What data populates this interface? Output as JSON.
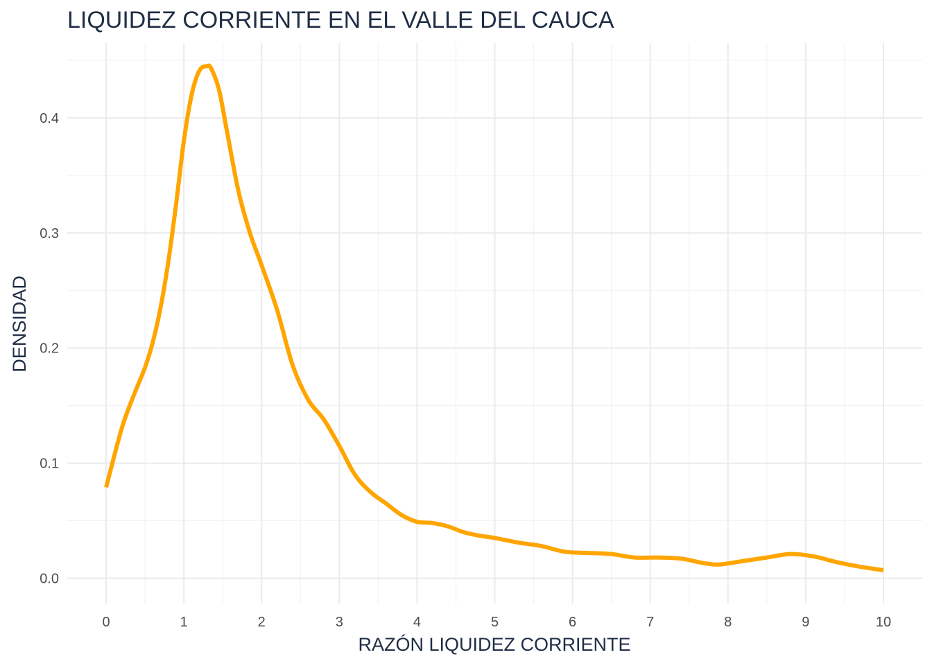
{
  "chart_data": {
    "type": "line",
    "title": "LIQUIDEZ CORRIENTE EN EL VALLE DEL CAUCA",
    "xlabel": "RAZÓN LIQUIDEZ CORRIENTE",
    "ylabel": "DENSIDAD",
    "xlim": [
      -0.5,
      10.5
    ],
    "ylim": [
      -0.022,
      0.465
    ],
    "x_ticks": [
      0,
      1,
      2,
      3,
      4,
      5,
      6,
      7,
      8,
      9,
      10
    ],
    "x_tick_labels": [
      "0",
      "1",
      "2",
      "3",
      "4",
      "5",
      "6",
      "7",
      "8",
      "9",
      "10"
    ],
    "y_ticks": [
      0.0,
      0.1,
      0.2,
      0.3,
      0.4
    ],
    "y_tick_labels": [
      "0.0",
      "0.1",
      "0.2",
      "0.3",
      "0.4"
    ],
    "grid": true,
    "legend": "none",
    "series": [
      {
        "color": "#FFA500",
        "x": [
          0,
          0.2,
          0.35,
          0.5,
          0.6,
          0.7,
          0.8,
          0.9,
          1.0,
          1.1,
          1.2,
          1.3,
          1.35,
          1.45,
          1.55,
          1.7,
          1.85,
          2.0,
          2.2,
          2.4,
          2.6,
          2.8,
          3.0,
          3.2,
          3.4,
          3.6,
          3.8,
          4.0,
          4.2,
          4.4,
          4.6,
          4.8,
          5.0,
          5.3,
          5.6,
          5.9,
          6.2,
          6.5,
          6.8,
          7.1,
          7.4,
          7.7,
          7.9,
          8.2,
          8.5,
          8.8,
          9.1,
          9.4,
          9.7,
          10.0
        ],
        "y": [
          0.079,
          0.13,
          0.158,
          0.183,
          0.205,
          0.235,
          0.275,
          0.325,
          0.38,
          0.42,
          0.441,
          0.445,
          0.443,
          0.425,
          0.39,
          0.337,
          0.3,
          0.272,
          0.233,
          0.185,
          0.155,
          0.138,
          0.115,
          0.09,
          0.075,
          0.065,
          0.055,
          0.049,
          0.048,
          0.045,
          0.04,
          0.037,
          0.035,
          0.031,
          0.028,
          0.023,
          0.022,
          0.021,
          0.018,
          0.018,
          0.017,
          0.013,
          0.012,
          0.015,
          0.018,
          0.021,
          0.019,
          0.014,
          0.01,
          0.007
        ]
      }
    ]
  }
}
